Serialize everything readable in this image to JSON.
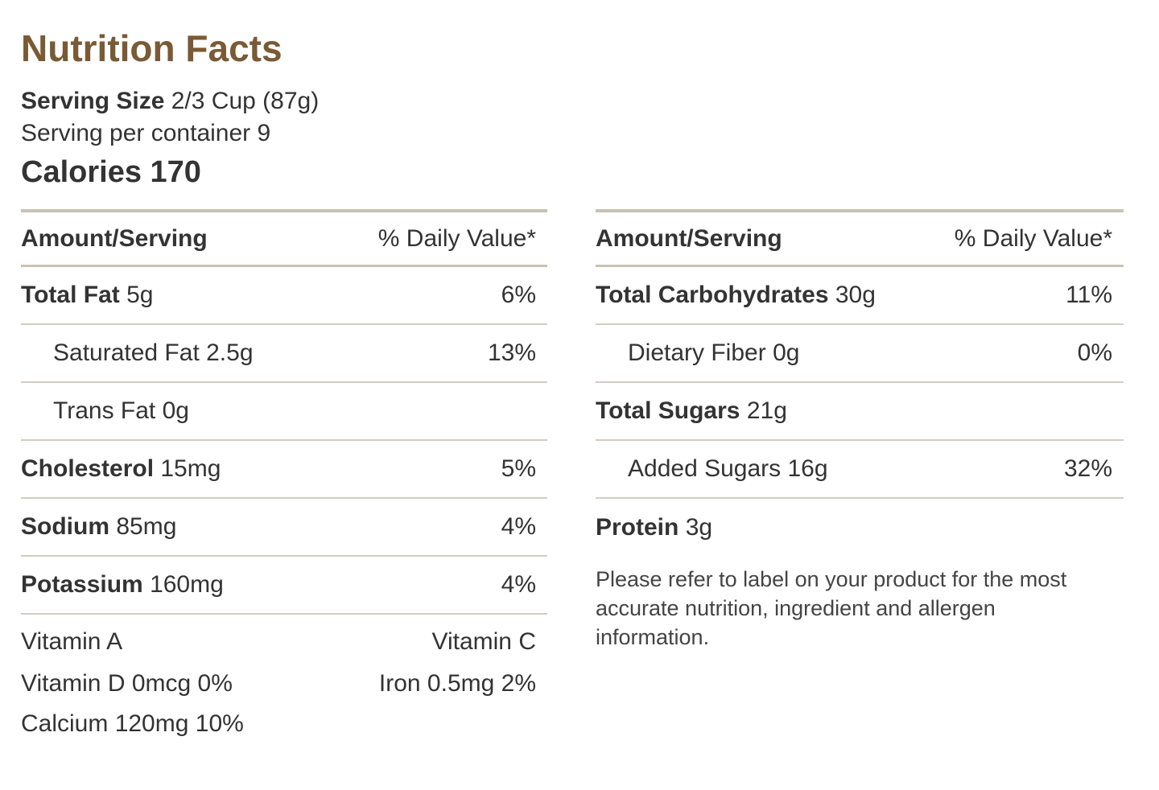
{
  "title": "Nutrition Facts",
  "serving": {
    "size_label": "Serving Size",
    "size_value": "2/3 Cup (87g)",
    "per_container": "Serving per container 9"
  },
  "calories": "Calories 170",
  "header": {
    "amount": "Amount/Serving",
    "daily_value": "% Daily Value*"
  },
  "left_rows": [
    {
      "name": "Total Fat",
      "amount": "5g",
      "dv": "6%"
    },
    {
      "name": "Saturated Fat",
      "amount": "2.5g",
      "dv": "13%"
    },
    {
      "name": "Trans Fat",
      "amount": "0g",
      "dv": ""
    },
    {
      "name": "Cholesterol",
      "amount": "15mg",
      "dv": "5%"
    },
    {
      "name": "Sodium",
      "amount": "85mg",
      "dv": "4%"
    },
    {
      "name": "Potassium",
      "amount": "160mg",
      "dv": "4%"
    }
  ],
  "vitamins": {
    "vitamin_a": "Vitamin A",
    "vitamin_c": "Vitamin C",
    "vitamin_d": "Vitamin D 0mcg 0%",
    "iron": "Iron 0.5mg 2%",
    "calcium": "Calcium 120mg 10%"
  },
  "right_rows": [
    {
      "name": "Total Carbohydrates",
      "amount": "30g",
      "dv": "11%"
    },
    {
      "name": "Dietary Fiber",
      "amount": "0g",
      "dv": "0%"
    },
    {
      "name": "Total Sugars",
      "amount": "21g",
      "dv": ""
    },
    {
      "name": "Added Sugars",
      "amount": "16g",
      "dv": "32%"
    },
    {
      "name": "Protein",
      "amount": "3g",
      "dv": ""
    }
  ],
  "note": "Please refer to label on your product for the most accurate nutrition, ingredient and allergen information."
}
